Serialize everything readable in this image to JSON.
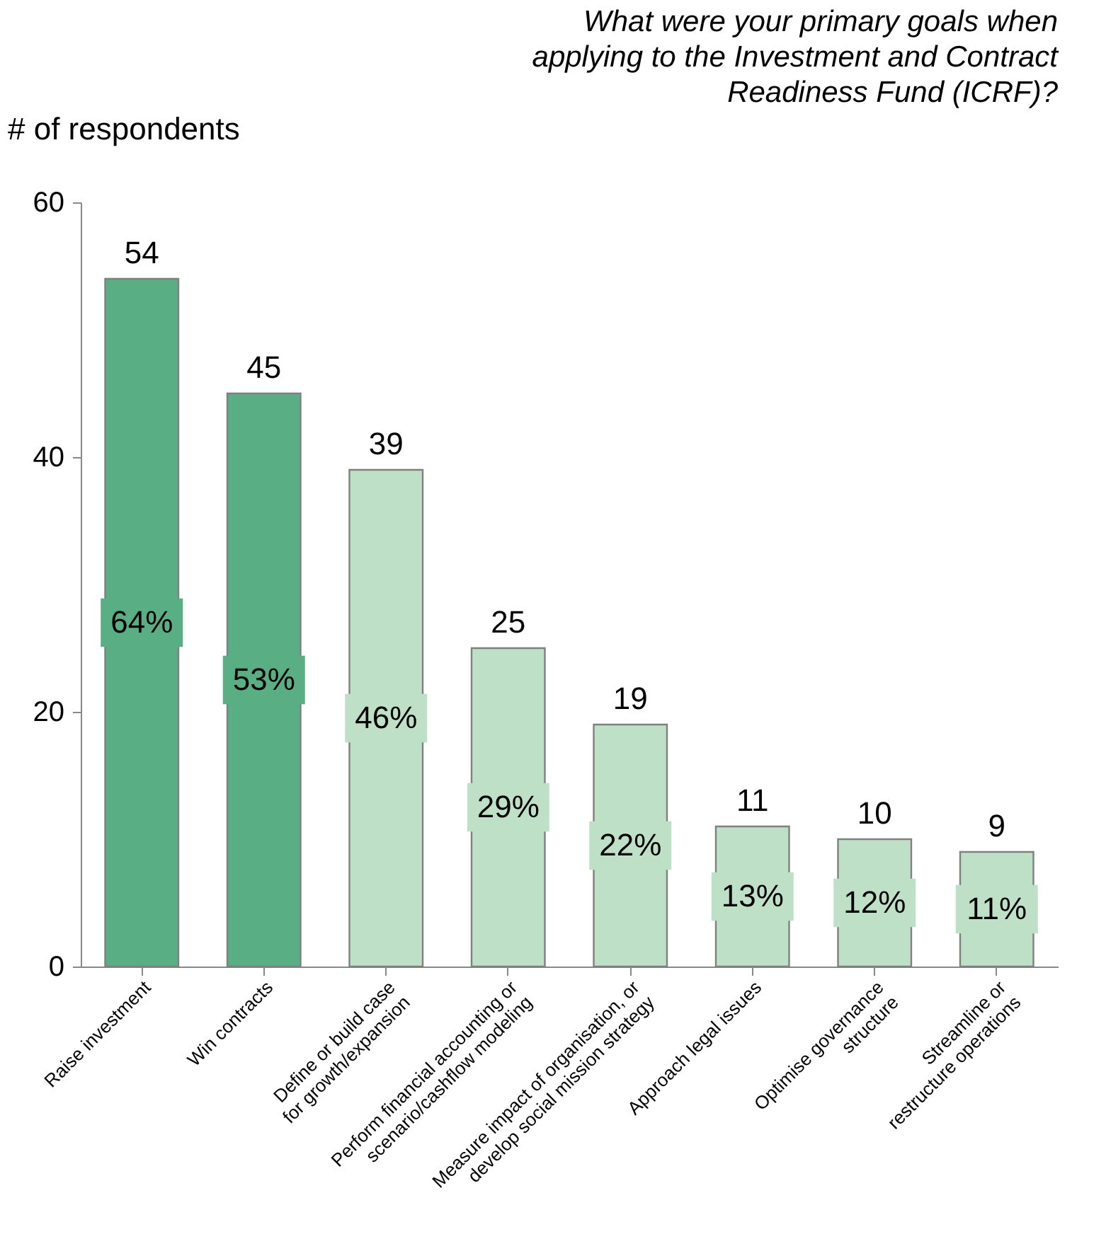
{
  "chart_data": {
    "type": "bar",
    "title": "What were your primary goals when\napplying to the Investment and Contract\nReadiness Fund (ICRF)?",
    "ylabel": "# of respondents",
    "categories": [
      "Raise investment",
      "Win contracts",
      "Define or build case\nfor growth/expansion",
      "Perform financial accounting or\nscenario/cashflow modeling",
      "Measure impact of organisation, or\ndevelop social mission strategy",
      "Approach legal issues",
      "Optimise governance\nstructure",
      "Streamline or\nrestructure operations"
    ],
    "values": [
      54,
      45,
      39,
      25,
      19,
      11,
      10,
      9
    ],
    "colors": [
      "#5aae84",
      "#5aae84",
      "#bde0c7",
      "#bde0c7",
      "#bde0c7",
      "#bde0c7",
      "#bde0c7",
      "#bde0c7"
    ],
    "data_labels": true,
    "annotations": [
      "64%",
      "53%",
      "46%",
      "29%",
      "22%",
      "13%",
      "12%",
      "11%"
    ],
    "ylim": [
      0,
      60
    ],
    "yticks": [
      0,
      20,
      40,
      60
    ],
    "grid": false
  }
}
